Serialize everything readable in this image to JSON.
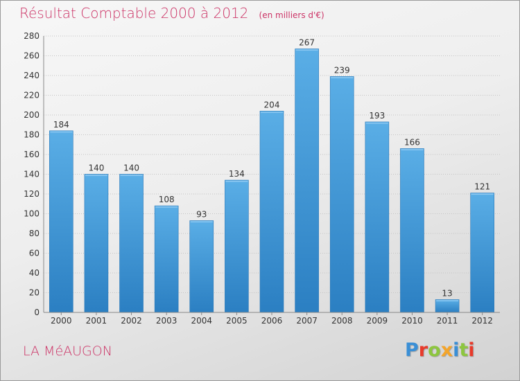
{
  "title": "Résultat Comptable 2000 à 2012",
  "unit": "(en milliers d'€)",
  "commune": "LA MéAUGON",
  "logo": {
    "letters": [
      "P",
      "r",
      "o",
      "x",
      "i",
      "t",
      "i"
    ],
    "colors": [
      "#3a8fd6",
      "#e83a2a",
      "#8dc63f",
      "#f4a52a",
      "#3a8fd6",
      "#8dc63f",
      "#e83a2a"
    ]
  },
  "colors": {
    "bar": "#4aa3e0",
    "bar_dark": "#2b7fc2",
    "title": "#cc3366"
  },
  "chart_data": {
    "type": "bar",
    "title": "Résultat Comptable 2000 à 2012",
    "xlabel": "",
    "ylabel": "",
    "categories": [
      "2000",
      "2001",
      "2002",
      "2003",
      "2004",
      "2005",
      "2006",
      "2007",
      "2008",
      "2009",
      "2010",
      "2011",
      "2012"
    ],
    "values": [
      184,
      140,
      140,
      108,
      93,
      134,
      204,
      267,
      239,
      193,
      166,
      13,
      121
    ],
    "ylim": [
      0,
      280
    ],
    "yticks": [
      0,
      20,
      40,
      60,
      80,
      100,
      120,
      140,
      160,
      180,
      200,
      220,
      240,
      260,
      280
    ],
    "grid": true
  }
}
